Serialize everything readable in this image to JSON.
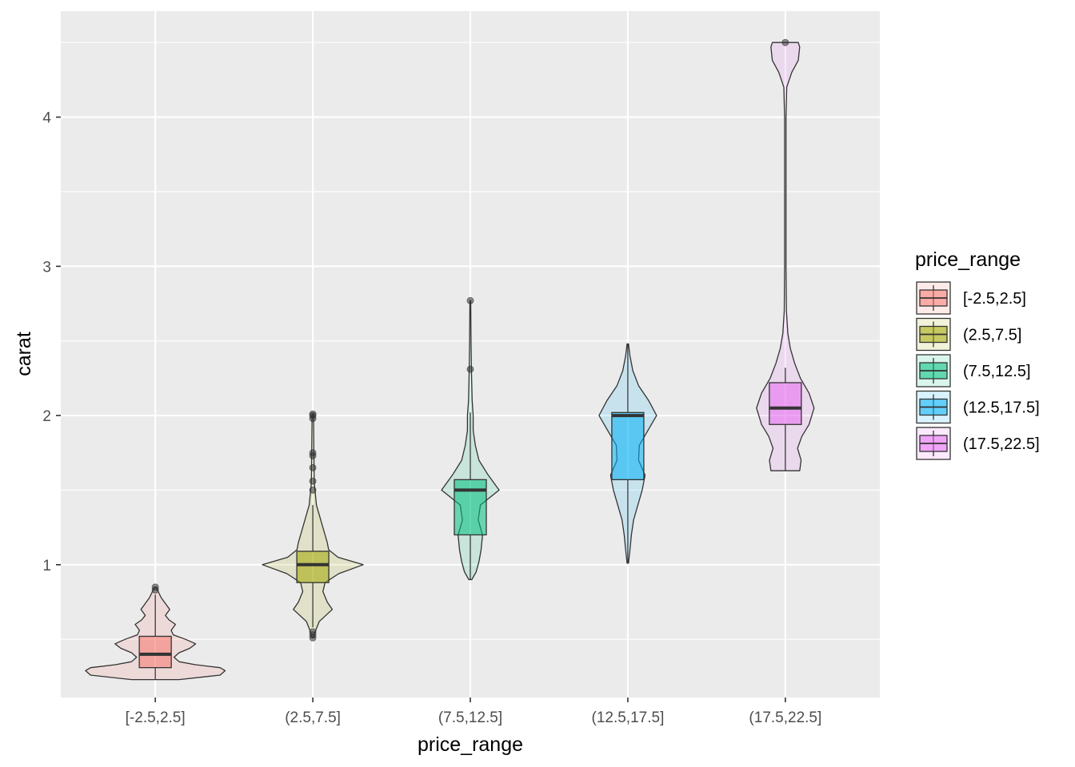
{
  "chart_data": {
    "type": "violin",
    "xlabel": "price_range",
    "ylabel": "carat",
    "categories": [
      "[-2.5,2.5]",
      "(2.5,7.5]",
      "(7.5,12.5]",
      "(12.5,17.5]",
      "(17.5,22.5]"
    ],
    "ylim": [
      0.11,
      4.71
    ],
    "yticks": [
      1,
      2,
      3,
      4
    ],
    "grid": true,
    "legend": {
      "title": "price_range",
      "placement": "right",
      "entries": [
        "[-2.5,2.5]",
        "(2.5,7.5]",
        "(7.5,12.5]",
        "(12.5,17.5]",
        "(17.5,22.5]"
      ]
    },
    "colors": [
      "#F8766D",
      "#A3A500",
      "#00BF7D",
      "#00B0F6",
      "#E76BF3"
    ],
    "groups": [
      {
        "category": "[-2.5,2.5]",
        "box": {
          "q1": 0.31,
          "median": 0.4,
          "q3": 0.52,
          "whisker_low": 0.23,
          "whisker_high": 0.8
        },
        "outliers": [
          0.83,
          0.85
        ],
        "violin": [
          [
            0.23,
            0.33
          ],
          [
            0.26,
            0.9
          ],
          [
            0.29,
            0.97
          ],
          [
            0.31,
            0.9
          ],
          [
            0.33,
            0.55
          ],
          [
            0.35,
            0.33
          ],
          [
            0.38,
            0.26
          ],
          [
            0.41,
            0.33
          ],
          [
            0.44,
            0.48
          ],
          [
            0.47,
            0.56
          ],
          [
            0.5,
            0.42
          ],
          [
            0.53,
            0.25
          ],
          [
            0.56,
            0.22
          ],
          [
            0.6,
            0.28
          ],
          [
            0.63,
            0.19
          ],
          [
            0.66,
            0.14
          ],
          [
            0.7,
            0.2
          ],
          [
            0.74,
            0.14
          ],
          [
            0.78,
            0.08
          ],
          [
            0.82,
            0.04
          ],
          [
            0.85,
            0.01
          ]
        ]
      },
      {
        "category": "(2.5,7.5]",
        "box": {
          "q1": 0.88,
          "median": 1.0,
          "q3": 1.09,
          "whisker_low": 0.58,
          "whisker_high": 1.4
        },
        "outliers": [
          0.51,
          0.53,
          0.55,
          1.5,
          1.56,
          1.65,
          1.73,
          1.75,
          1.98,
          2.0,
          2.01
        ],
        "violin": [
          [
            0.51,
            0.01
          ],
          [
            0.56,
            0.04
          ],
          [
            0.62,
            0.09
          ],
          [
            0.7,
            0.27
          ],
          [
            0.75,
            0.2
          ],
          [
            0.82,
            0.14
          ],
          [
            0.88,
            0.17
          ],
          [
            0.94,
            0.36
          ],
          [
            1.0,
            0.7
          ],
          [
            1.05,
            0.35
          ],
          [
            1.1,
            0.22
          ],
          [
            1.15,
            0.2
          ],
          [
            1.2,
            0.17
          ],
          [
            1.3,
            0.11
          ],
          [
            1.4,
            0.05
          ],
          [
            1.55,
            0.02
          ],
          [
            1.75,
            0.015
          ],
          [
            2.01,
            0.01
          ]
        ]
      },
      {
        "category": "(7.5,12.5]",
        "box": {
          "q1": 1.2,
          "median": 1.5,
          "q3": 1.57,
          "whisker_low": 0.9,
          "whisker_high": 2.02
        },
        "outliers": [
          2.31,
          2.77
        ],
        "violin": [
          [
            0.9,
            0.02
          ],
          [
            0.95,
            0.08
          ],
          [
            1.02,
            0.12
          ],
          [
            1.1,
            0.15
          ],
          [
            1.2,
            0.17
          ],
          [
            1.3,
            0.11
          ],
          [
            1.4,
            0.14
          ],
          [
            1.5,
            0.4
          ],
          [
            1.6,
            0.25
          ],
          [
            1.7,
            0.12
          ],
          [
            1.8,
            0.07
          ],
          [
            1.9,
            0.04
          ],
          [
            2.0,
            0.04
          ],
          [
            2.1,
            0.025
          ],
          [
            2.3,
            0.015
          ],
          [
            2.5,
            0.01
          ],
          [
            2.77,
            0.005
          ]
        ]
      },
      {
        "category": "(12.5,17.5]",
        "box": {
          "q1": 1.57,
          "median": 2.0,
          "q3": 2.02,
          "whisker_low": 1.01,
          "whisker_high": 2.48
        },
        "outliers": [],
        "violin": [
          [
            1.01,
            0.01
          ],
          [
            1.1,
            0.03
          ],
          [
            1.2,
            0.05
          ],
          [
            1.3,
            0.08
          ],
          [
            1.4,
            0.14
          ],
          [
            1.5,
            0.2
          ],
          [
            1.6,
            0.24
          ],
          [
            1.7,
            0.15
          ],
          [
            1.8,
            0.16
          ],
          [
            1.9,
            0.28
          ],
          [
            2.0,
            0.4
          ],
          [
            2.1,
            0.29
          ],
          [
            2.2,
            0.15
          ],
          [
            2.3,
            0.07
          ],
          [
            2.4,
            0.03
          ],
          [
            2.48,
            0.01
          ]
        ]
      },
      {
        "category": "(17.5,22.5]",
        "box": {
          "q1": 1.94,
          "median": 2.05,
          "q3": 2.22,
          "whisker_low": 1.63,
          "whisker_high": 2.32
        },
        "outliers": [
          4.5
        ],
        "violin": [
          [
            1.63,
            0.2
          ],
          [
            1.7,
            0.22
          ],
          [
            1.78,
            0.17
          ],
          [
            1.86,
            0.23
          ],
          [
            1.94,
            0.33
          ],
          [
            2.05,
            0.4
          ],
          [
            2.15,
            0.33
          ],
          [
            2.25,
            0.21
          ],
          [
            2.35,
            0.13
          ],
          [
            2.45,
            0.07
          ],
          [
            2.55,
            0.035
          ],
          [
            2.7,
            0.015
          ],
          [
            3.0,
            0.01
          ],
          [
            3.5,
            0.01
          ],
          [
            4.0,
            0.01
          ],
          [
            4.2,
            0.02
          ],
          [
            4.3,
            0.09
          ],
          [
            4.38,
            0.18
          ],
          [
            4.47,
            0.2
          ],
          [
            4.5,
            0.18
          ]
        ]
      }
    ]
  }
}
